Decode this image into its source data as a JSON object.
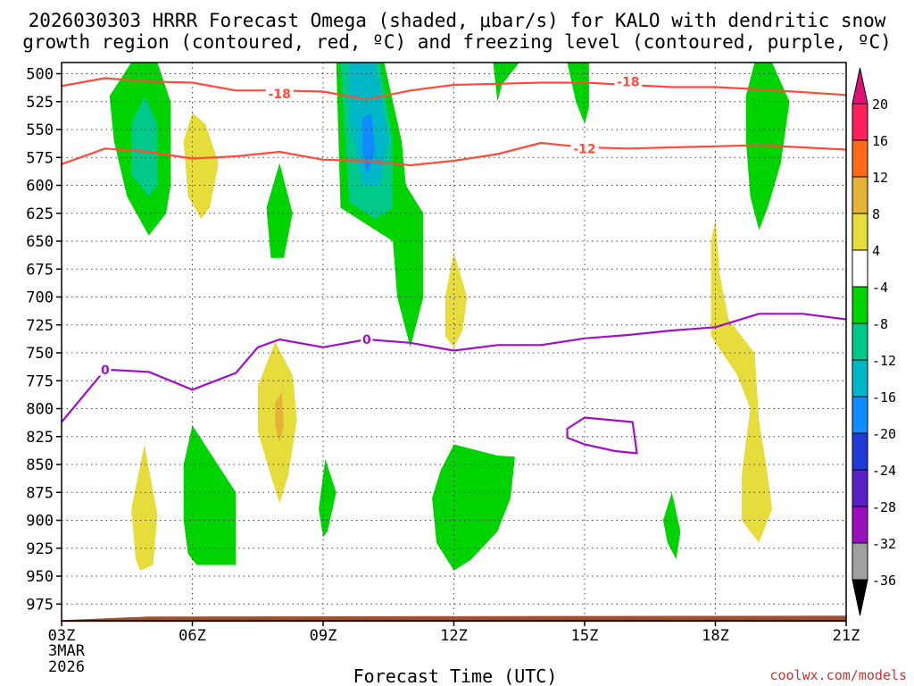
{
  "chart_data": {
    "type": "contour",
    "title_line1": "2026030303 HRRR Forecast Omega (shaded, μbar/s) for KALO with dendritic snow",
    "title_line2": "growth region (contoured, red, ºC) and freezing level (contoured, purple, ºC)",
    "xlabel": "Forecast Time (UTC)",
    "x_ticks": [
      "03Z",
      "06Z",
      "09Z",
      "12Z",
      "15Z",
      "18Z",
      "21Z"
    ],
    "x_date_line1": "3MAR",
    "x_date_line2": "2026",
    "y_ticks": [
      500,
      525,
      550,
      575,
      600,
      625,
      650,
      675,
      700,
      725,
      750,
      775,
      800,
      825,
      850,
      875,
      900,
      925,
      950,
      975
    ],
    "ylim": [
      490,
      990
    ],
    "xlim_hours": [
      3,
      21
    ],
    "colorbar_labels": [
      "20",
      "16",
      "12",
      "8",
      "4",
      "-4",
      "-8",
      "-12",
      "-16",
      "-20",
      "-24",
      "-28",
      "-32",
      "-36"
    ],
    "colorbar_colors": [
      "#ff1f5a",
      "#ff6a1a",
      "#e6b33a",
      "#e6dc3c",
      "#ffffff",
      "#00d400",
      "#00c98a",
      "#00b7c8",
      "#0f8cff",
      "#1f3ad6",
      "#5a1fc8",
      "#9a0fbd",
      "#a0a0a0"
    ],
    "colorbar_top_color": "#e0107a",
    "colorbar_bottom_color": "#000000",
    "isotherm_labels": {
      "minus18": [
        {
          "x": 8,
          "p": 518,
          "t": "-18"
        },
        {
          "x": 16,
          "p": 507,
          "t": "-18"
        }
      ],
      "minus12": [
        {
          "x": 15,
          "p": 567,
          "t": "-12"
        }
      ],
      "zero": [
        {
          "x": 4,
          "p": 765,
          "t": "0"
        },
        {
          "x": 10,
          "p": 738,
          "t": "0"
        }
      ]
    },
    "isotherms": [
      {
        "name": "minus18",
        "value": -18,
        "color": "#ff4b3c",
        "points": [
          [
            3,
            511
          ],
          [
            4,
            504
          ],
          [
            5,
            507
          ],
          [
            6,
            508
          ],
          [
            7,
            515
          ],
          [
            8,
            515
          ],
          [
            9,
            516
          ],
          [
            10,
            523
          ],
          [
            11,
            515
          ],
          [
            12,
            510
          ],
          [
            13,
            509
          ],
          [
            14,
            508
          ],
          [
            15,
            508
          ],
          [
            16,
            510
          ],
          [
            17,
            512
          ],
          [
            18,
            512
          ],
          [
            19,
            514
          ],
          [
            21,
            519
          ]
        ]
      },
      {
        "name": "minus12",
        "value": -12,
        "color": "#ff4b3c",
        "points": [
          [
            3,
            581
          ],
          [
            4,
            567
          ],
          [
            5,
            570
          ],
          [
            6,
            576
          ],
          [
            7,
            574
          ],
          [
            8,
            570
          ],
          [
            9,
            577
          ],
          [
            10,
            578
          ],
          [
            11,
            582
          ],
          [
            12,
            578
          ],
          [
            13,
            572
          ],
          [
            14,
            562
          ],
          [
            15,
            566
          ],
          [
            16,
            567
          ],
          [
            17,
            566
          ],
          [
            18,
            565
          ],
          [
            19,
            564
          ],
          [
            21,
            568
          ]
        ]
      },
      {
        "name": "zero",
        "value": 0,
        "color": "#a010c8",
        "points": [
          [
            3,
            812
          ],
          [
            4,
            765
          ],
          [
            5,
            767
          ],
          [
            6,
            783
          ],
          [
            7,
            768
          ],
          [
            7.5,
            745
          ],
          [
            8,
            738
          ],
          [
            9,
            745
          ],
          [
            10,
            738
          ],
          [
            11,
            741
          ],
          [
            12,
            748
          ],
          [
            13,
            743
          ],
          [
            14,
            743
          ],
          [
            15,
            737
          ],
          [
            16,
            734
          ],
          [
            17,
            730
          ],
          [
            18,
            727
          ],
          [
            19,
            715
          ],
          [
            20,
            715
          ],
          [
            21,
            720
          ]
        ]
      },
      {
        "name": "zero-loop",
        "value": 0,
        "color": "#a010c8",
        "closed": true,
        "points": [
          [
            14.6,
            818
          ],
          [
            15,
            808
          ],
          [
            16.1,
            812
          ],
          [
            16.2,
            840
          ],
          [
            15.7,
            838
          ],
          [
            15,
            832
          ],
          [
            14.6,
            826
          ]
        ]
      }
    ],
    "omega_regions": [
      {
        "name": "green-upper-left",
        "level": -4,
        "color": "#00d400",
        "points": [
          [
            4.1,
            520
          ],
          [
            4.6,
            490
          ],
          [
            5.2,
            490
          ],
          [
            5.5,
            525
          ],
          [
            5.5,
            600
          ],
          [
            5.4,
            625
          ],
          [
            5,
            645
          ],
          [
            4.5,
            610
          ],
          [
            4.2,
            560
          ]
        ]
      },
      {
        "name": "teal-upper-left",
        "level": -8,
        "color": "#00c98a",
        "points": [
          [
            4.6,
            545
          ],
          [
            4.9,
            520
          ],
          [
            5.2,
            545
          ],
          [
            5.2,
            600
          ],
          [
            5,
            610
          ],
          [
            4.6,
            590
          ]
        ]
      },
      {
        "name": "yellow-upper-left",
        "level": 4,
        "color": "#e6dc3c",
        "points": [
          [
            5.8,
            560
          ],
          [
            6,
            535
          ],
          [
            6.3,
            545
          ],
          [
            6.6,
            580
          ],
          [
            6.4,
            620
          ],
          [
            6.2,
            630
          ],
          [
            5.9,
            610
          ]
        ]
      },
      {
        "name": "green-small-08z",
        "level": -4,
        "color": "#00d400",
        "points": [
          [
            7.7,
            620
          ],
          [
            8,
            580
          ],
          [
            8.3,
            625
          ],
          [
            8.1,
            665
          ],
          [
            7.8,
            665
          ]
        ]
      },
      {
        "name": "green-upper-mid",
        "level": -4,
        "color": "#00d400",
        "points": [
          [
            9.3,
            490
          ],
          [
            10.4,
            490
          ],
          [
            10.8,
            560
          ],
          [
            10.9,
            600
          ],
          [
            11.3,
            625
          ],
          [
            11.3,
            700
          ],
          [
            11,
            745
          ],
          [
            10.7,
            700
          ],
          [
            10.6,
            650
          ],
          [
            10.2,
            640
          ],
          [
            9.4,
            620
          ]
        ]
      },
      {
        "name": "teal-upper-mid",
        "level": -8,
        "color": "#00c98a",
        "points": [
          [
            9.4,
            490
          ],
          [
            10.3,
            490
          ],
          [
            10.6,
            560
          ],
          [
            10.6,
            620
          ],
          [
            10.2,
            630
          ],
          [
            9.6,
            615
          ]
        ]
      },
      {
        "name": "cyan-upper-mid",
        "level": -12,
        "color": "#00b7c8",
        "points": [
          [
            9.6,
            490
          ],
          [
            10.2,
            490
          ],
          [
            10.5,
            560
          ],
          [
            10.3,
            600
          ],
          [
            9.9,
            600
          ],
          [
            9.8,
            580
          ],
          [
            9.6,
            540
          ]
        ]
      },
      {
        "name": "blue-core-mid",
        "level": -16,
        "color": "#0f8cff",
        "points": [
          [
            9.9,
            540
          ],
          [
            10.1,
            535
          ],
          [
            10.2,
            570
          ],
          [
            10,
            590
          ],
          [
            9.9,
            570
          ]
        ]
      },
      {
        "name": "yellow-11z",
        "level": 4,
        "color": "#e6dc3c",
        "points": [
          [
            11.8,
            700
          ],
          [
            12,
            660
          ],
          [
            12.3,
            700
          ],
          [
            12.2,
            730
          ],
          [
            12,
            745
          ],
          [
            11.8,
            735
          ]
        ]
      },
      {
        "name": "green-top-13z",
        "level": -4,
        "color": "#00d400",
        "points": [
          [
            12.9,
            490
          ],
          [
            13.5,
            490
          ],
          [
            13.1,
            510
          ],
          [
            13,
            525
          ]
        ]
      },
      {
        "name": "green-top-15z",
        "level": -4,
        "color": "#00d400",
        "points": [
          [
            14.6,
            490
          ],
          [
            15.1,
            490
          ],
          [
            15.1,
            530
          ],
          [
            15,
            545
          ],
          [
            14.8,
            525
          ]
        ]
      },
      {
        "name": "green-upper-right",
        "level": -4,
        "color": "#00d400",
        "points": [
          [
            18.7,
            520
          ],
          [
            18.9,
            490
          ],
          [
            19.3,
            490
          ],
          [
            19.7,
            525
          ],
          [
            19.5,
            580
          ],
          [
            19.2,
            620
          ],
          [
            19,
            640
          ],
          [
            18.8,
            610
          ],
          [
            18.7,
            560
          ]
        ]
      },
      {
        "name": "yellow-right",
        "level": 4,
        "color": "#e6dc3c",
        "points": [
          [
            17.9,
            650
          ],
          [
            18,
            630
          ],
          [
            18.1,
            680
          ],
          [
            18.3,
            720
          ],
          [
            18.9,
            750
          ],
          [
            19,
            810
          ],
          [
            19.2,
            860
          ],
          [
            19.3,
            890
          ],
          [
            19,
            920
          ],
          [
            18.6,
            900
          ],
          [
            18.6,
            860
          ],
          [
            18.8,
            800
          ],
          [
            18.5,
            770
          ],
          [
            17.9,
            735
          ]
        ]
      },
      {
        "name": "yellow-08z",
        "level": 4,
        "color": "#e6dc3c",
        "points": [
          [
            7.5,
            780
          ],
          [
            7.9,
            740
          ],
          [
            8.3,
            770
          ],
          [
            8.4,
            810
          ],
          [
            8.2,
            860
          ],
          [
            8,
            885
          ],
          [
            7.8,
            860
          ],
          [
            7.5,
            820
          ]
        ]
      },
      {
        "name": "orange-08z",
        "level": 8,
        "color": "#e6b33a",
        "points": [
          [
            7.9,
            795
          ],
          [
            8.05,
            785
          ],
          [
            8.1,
            815
          ],
          [
            8,
            830
          ],
          [
            7.9,
            815
          ]
        ]
      },
      {
        "name": "yellow-lower-left",
        "level": 4,
        "color": "#e6dc3c",
        "points": [
          [
            4.6,
            890
          ],
          [
            4.9,
            832
          ],
          [
            5.2,
            895
          ],
          [
            5.1,
            940
          ],
          [
            4.8,
            945
          ],
          [
            4.7,
            935
          ]
        ]
      },
      {
        "name": "green-lower-06z",
        "level": -4,
        "color": "#00d400",
        "points": [
          [
            5.8,
            850
          ],
          [
            6,
            815
          ],
          [
            7,
            875
          ],
          [
            7,
            940
          ],
          [
            6.1,
            940
          ],
          [
            5.9,
            930
          ],
          [
            5.8,
            900
          ]
        ]
      },
      {
        "name": "green-lower-09z",
        "level": -4,
        "color": "#00d400",
        "points": [
          [
            8.9,
            890
          ],
          [
            9.05,
            845
          ],
          [
            9.3,
            875
          ],
          [
            9.1,
            910
          ],
          [
            9,
            915
          ]
        ]
      },
      {
        "name": "green-lower-12z",
        "level": -4,
        "color": "#00d400",
        "points": [
          [
            11.5,
            880
          ],
          [
            11.7,
            855
          ],
          [
            12,
            832
          ],
          [
            13,
            842
          ],
          [
            13.4,
            843
          ],
          [
            13.3,
            880
          ],
          [
            13,
            910
          ],
          [
            12.4,
            935
          ],
          [
            12,
            945
          ],
          [
            11.6,
            920
          ]
        ]
      },
      {
        "name": "green-lower-17z",
        "level": -4,
        "color": "#00d400",
        "points": [
          [
            16.8,
            900
          ],
          [
            17,
            875
          ],
          [
            17.2,
            910
          ],
          [
            17.1,
            935
          ],
          [
            16.9,
            920
          ]
        ]
      }
    ],
    "ground_pressure": 987,
    "ground_color": "#a0522d"
  },
  "credit": "coolwx.com/models"
}
